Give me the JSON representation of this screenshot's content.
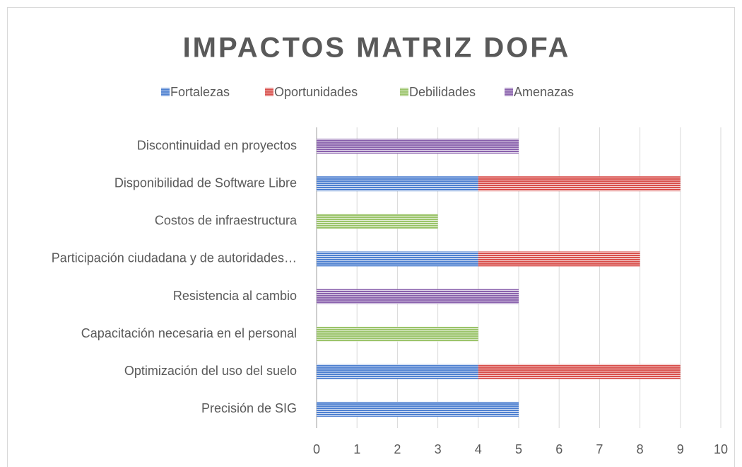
{
  "chart_data": {
    "type": "stacked_barh",
    "title": "IMPACTOS MATRIZ DOFA",
    "categories": [
      "Precisión de SIG",
      "Optimización del uso del suelo",
      "Capacitación necesaria en el personal",
      "Resistencia al cambio",
      "Participación ciudadana y de autoridades…",
      "Costos de infraestructura",
      "Disponibilidad de Software Libre",
      "Discontinuidad en proyectos"
    ],
    "series": [
      {
        "name": "Fortalezas",
        "color": "#4f81d1",
        "values": [
          5,
          4,
          null,
          null,
          4,
          null,
          4,
          null
        ]
      },
      {
        "name": "Oportunidades",
        "color": "#d9504c",
        "values": [
          null,
          5,
          null,
          null,
          4,
          null,
          5,
          null
        ]
      },
      {
        "name": "Debilidades",
        "color": "#9bc46a",
        "values": [
          null,
          null,
          4,
          null,
          null,
          3,
          null,
          null
        ]
      },
      {
        "name": "Amenazas",
        "color": "#8a62ad",
        "values": [
          null,
          null,
          null,
          5,
          null,
          null,
          null,
          5
        ]
      }
    ],
    "xlim": [
      0,
      10
    ],
    "xticks": [
      0,
      1,
      2,
      3,
      4,
      5,
      6,
      7,
      8,
      9,
      10
    ],
    "grid": true,
    "legend": "top"
  }
}
